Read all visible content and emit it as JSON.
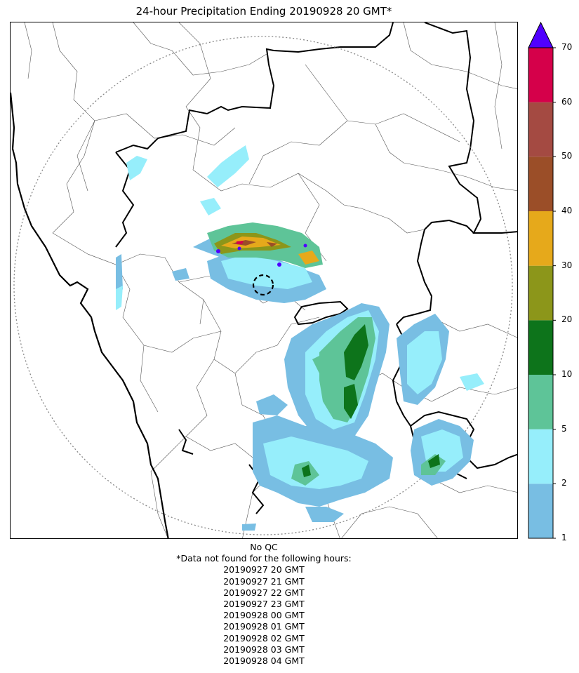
{
  "title": "24-hour Precipitation Ending 20190928 20 GMT*",
  "colorbar": {
    "tick_labels": [
      "1",
      "2",
      "5",
      "10",
      "20",
      "30",
      "40",
      "50",
      "60",
      "70"
    ],
    "bins": [
      {
        "range": "1-2",
        "color": "#78bee3"
      },
      {
        "range": "2-5",
        "color": "#96eefb"
      },
      {
        "range": "5-10",
        "color": "#5ec498"
      },
      {
        "range": "10-20",
        "color": "#0d741b"
      },
      {
        "range": "20-30",
        "color": "#8c961a"
      },
      {
        "range": "30-40",
        "color": "#e6a91b"
      },
      {
        "range": "40-50",
        "color": "#9b4e28"
      },
      {
        "range": "50-60",
        "color": "#a44a42"
      },
      {
        "range": "60-70",
        "color": "#d5004a"
      },
      {
        "range": ">70",
        "color": "#5000ff"
      }
    ],
    "extend": "max"
  },
  "map": {
    "radar_range_ring": "dotted gray circle",
    "radar_site_marker": "dashed black circle",
    "boundaries": [
      "coastline",
      "state borders",
      "district borders"
    ],
    "main_precipitation_areas": [
      "west-central band, heavy embedded cores",
      "south-central band, 10-20 mm core",
      "eastern cluster, 2-10 mm"
    ]
  },
  "footer": {
    "qc_note": "No QC",
    "missing_note": "*Data not found for the following hours:",
    "missing_hours": [
      "20190927 20 GMT",
      "20190927 21 GMT",
      "20190927 22 GMT",
      "20190927 23 GMT",
      "20190928 00 GMT",
      "20190928 01 GMT",
      "20190928 02 GMT",
      "20190928 03 GMT",
      "20190928 04 GMT"
    ]
  }
}
